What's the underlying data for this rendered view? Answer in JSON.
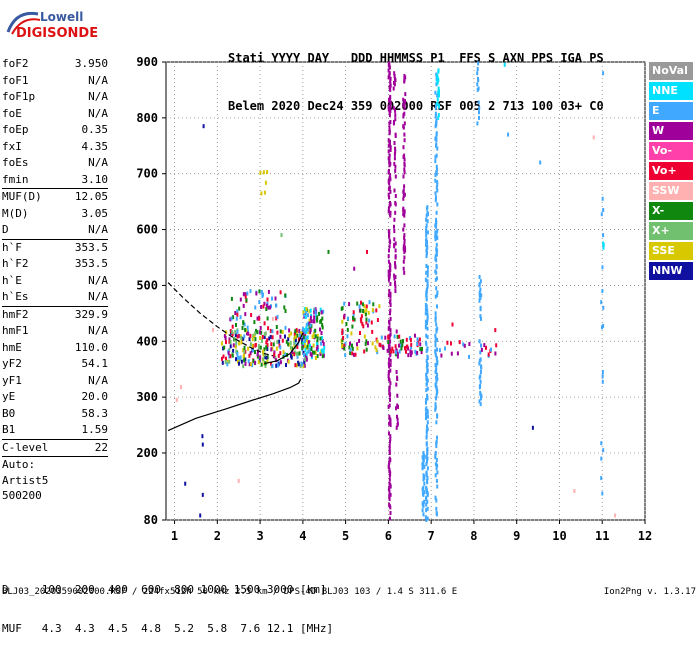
{
  "logo": {
    "top": "Lowell",
    "bottom": "DIGISONDE"
  },
  "header": {
    "line1": "Stati YYYY DAY   DDD HHMMSS P1  FFS S AXN PPS IGA PS",
    "line2": "Belem 2020 Dec24 359 002000 RSF 005 2 713 100 03+ C0"
  },
  "parameters": {
    "group1": [
      {
        "name": "foF2",
        "value": "3.950"
      },
      {
        "name": "foF1",
        "value": "N/A"
      },
      {
        "name": "foF1p",
        "value": "N/A"
      },
      {
        "name": "foE",
        "value": "N/A"
      },
      {
        "name": "foEp",
        "value": "0.35"
      },
      {
        "name": "fxI",
        "value": "4.35"
      },
      {
        "name": "foEs",
        "value": "N/A"
      },
      {
        "name": "fmin",
        "value": "3.10"
      }
    ],
    "group2": [
      {
        "name": "MUF(D)",
        "value": "12.05"
      },
      {
        "name": "M(D)",
        "value": "3.05"
      },
      {
        "name": "D",
        "value": "N/A"
      }
    ],
    "group3": [
      {
        "name": "h`F",
        "value": "353.5"
      },
      {
        "name": "h`F2",
        "value": "353.5"
      },
      {
        "name": "h`E",
        "value": "N/A"
      },
      {
        "name": "h`Es",
        "value": "N/A"
      }
    ],
    "group4": [
      {
        "name": "hmF2",
        "value": "329.9"
      },
      {
        "name": "hmF1",
        "value": "N/A"
      },
      {
        "name": "hmE",
        "value": "110.0"
      },
      {
        "name": "yF2",
        "value": "54.1"
      },
      {
        "name": "yF1",
        "value": "N/A"
      },
      {
        "name": "yE",
        "value": "20.0"
      },
      {
        "name": "B0",
        "value": "58.3"
      },
      {
        "name": "B1",
        "value": "1.59"
      }
    ],
    "clevel": {
      "name": "C-level",
      "value": "22"
    },
    "auto": [
      "Auto:",
      "Artist5",
      "500200"
    ]
  },
  "legend": [
    {
      "label": "NoVal",
      "color": "#999999"
    },
    {
      "label": "NNE",
      "color": "#00e0ff"
    },
    {
      "label": "E",
      "color": "#40a8ff"
    },
    {
      "label": "W",
      "color": "#a0009a"
    },
    {
      "label": "Vo-",
      "color": "#ff3faa"
    },
    {
      "label": "Vo+",
      "color": "#ee0033"
    },
    {
      "label": "SSW",
      "color": "#ffb0b0"
    },
    {
      "label": "X-",
      "color": "#108810"
    },
    {
      "label": "X+",
      "color": "#70c070"
    },
    {
      "label": "SSE",
      "color": "#d8c800"
    },
    {
      "label": "NNW",
      "color": "#1010a0"
    }
  ],
  "muf_table": {
    "line1": "D     100  200  400  600  800 1000 1500 3000 [km]",
    "line2": "MUF   4.3  4.3  4.5  4.8  5.2  5.8  7.6 12.1 [MHz]"
  },
  "footer": {
    "left": "BLJ03_2020359002000.RSF / 224fx512h 50 kHz 2.5 km / DPS-4D BLJ03 103 / 1.4 S 311.6 E",
    "right": "Ion2Png v. 1.3.17"
  },
  "chart_data": {
    "type": "scatter",
    "x_ticks": [
      "1",
      "2",
      "3",
      "4",
      "5",
      "6",
      "7",
      "8",
      "9",
      "10",
      "11",
      "12"
    ],
    "y_ticks": [
      "80",
      "200",
      "300",
      "400",
      "500",
      "600",
      "700",
      "800",
      "900"
    ],
    "xlim": [
      0.8,
      12.0
    ],
    "ylim": [
      80,
      900
    ],
    "grid": true,
    "legend_position": "right",
    "trace_profile": [
      [
        0.85,
        240
      ],
      [
        1.5,
        262
      ],
      [
        2.2,
        279
      ],
      [
        2.8,
        294
      ],
      [
        3.3,
        306
      ],
      [
        3.7,
        317
      ],
      [
        3.9,
        325
      ],
      [
        3.95,
        332
      ]
    ],
    "trace_dashed": [
      [
        0.85,
        505
      ],
      [
        1.2,
        478
      ],
      [
        1.6,
        450
      ],
      [
        2.0,
        426
      ],
      [
        2.4,
        405
      ],
      [
        2.8,
        388
      ],
      [
        3.1,
        378
      ],
      [
        3.3,
        374
      ]
    ],
    "trace_solid_upper": [
      [
        3.1,
        360
      ],
      [
        3.4,
        365
      ],
      [
        3.7,
        378
      ],
      [
        3.9,
        398
      ],
      [
        4.0,
        415
      ]
    ],
    "vertical_streaks": [
      {
        "x": 6.03,
        "y1": 80,
        "y2": 900,
        "mode": "W",
        "density": 0.55
      },
      {
        "x": 6.15,
        "y1": 480,
        "y2": 880,
        "mode": "W",
        "density": 0.35
      },
      {
        "x": 6.37,
        "y1": 520,
        "y2": 890,
        "mode": "W",
        "density": 0.3
      },
      {
        "x": 6.2,
        "y1": 230,
        "y2": 420,
        "mode": "W",
        "density": 0.25
      },
      {
        "x": 6.9,
        "y1": 80,
        "y2": 640,
        "mode": "E",
        "density": 0.55
      },
      {
        "x": 7.12,
        "y1": 90,
        "y2": 880,
        "mode": "E",
        "density": 0.4
      },
      {
        "x": 6.82,
        "y1": 90,
        "y2": 200,
        "mode": "E",
        "density": 0.6
      },
      {
        "x": 8.15,
        "y1": 280,
        "y2": 520,
        "mode": "E",
        "density": 0.3
      },
      {
        "x": 8.1,
        "y1": 770,
        "y2": 900,
        "mode": "E",
        "density": 0.3
      },
      {
        "x": 11.0,
        "y1": 80,
        "y2": 900,
        "mode": "E",
        "density": 0.07
      },
      {
        "x": 11.02,
        "y1": 560,
        "y2": 580,
        "mode": "NNE",
        "density": 0.8
      },
      {
        "x": 7.16,
        "y1": 800,
        "y2": 890,
        "mode": "NNE",
        "density": 0.4
      }
    ],
    "clusters": [
      {
        "x1": 2.1,
        "x2": 4.1,
        "y1": 355,
        "y2": 420,
        "count": 260,
        "modes": [
          "W",
          "Vo+",
          "X-",
          "X+",
          "SSE",
          "E",
          "NNW"
        ]
      },
      {
        "x1": 2.3,
        "x2": 3.6,
        "y1": 420,
        "y2": 490,
        "count": 70,
        "modes": [
          "W",
          "Vo+",
          "X-",
          "E"
        ]
      },
      {
        "x1": 4.0,
        "x2": 4.5,
        "y1": 370,
        "y2": 460,
        "count": 120,
        "modes": [
          "E",
          "NNE",
          "X-",
          "W",
          "SSE"
        ]
      },
      {
        "x1": 4.9,
        "x2": 5.8,
        "y1": 375,
        "y2": 470,
        "count": 90,
        "modes": [
          "E",
          "X-",
          "W",
          "Vo+",
          "SSE"
        ]
      },
      {
        "x1": 5.8,
        "x2": 6.8,
        "y1": 375,
        "y2": 410,
        "count": 60,
        "modes": [
          "Vo+",
          "X-",
          "W",
          "E"
        ]
      },
      {
        "x1": 7.2,
        "x2": 8.6,
        "y1": 370,
        "y2": 400,
        "count": 20,
        "modes": [
          "Vo+",
          "E",
          "W"
        ]
      },
      {
        "x1": 3.0,
        "x2": 3.2,
        "y1": 660,
        "y2": 730,
        "count": 6,
        "modes": [
          "SSE"
        ]
      }
    ],
    "scattered_points": [
      {
        "x": 1.68,
        "y": 785,
        "mode": "NNW"
      },
      {
        "x": 1.65,
        "y": 230,
        "mode": "NNW"
      },
      {
        "x": 1.66,
        "y": 215,
        "mode": "NNW"
      },
      {
        "x": 1.66,
        "y": 125,
        "mode": "NNW"
      },
      {
        "x": 1.6,
        "y": 88,
        "mode": "NNW"
      },
      {
        "x": 1.25,
        "y": 145,
        "mode": "NNW"
      },
      {
        "x": 9.38,
        "y": 245,
        "mode": "NNW"
      },
      {
        "x": 8.8,
        "y": 770,
        "mode": "E"
      },
      {
        "x": 9.55,
        "y": 720,
        "mode": "E"
      },
      {
        "x": 10.8,
        "y": 765,
        "mode": "SSW"
      },
      {
        "x": 8.72,
        "y": 895,
        "mode": "NNE"
      },
      {
        "x": 10.35,
        "y": 132,
        "mode": "SSW"
      },
      {
        "x": 11.3,
        "y": 88,
        "mode": "SSW"
      },
      {
        "x": 1.15,
        "y": 318,
        "mode": "SSW"
      },
      {
        "x": 1.05,
        "y": 295,
        "mode": "SSW"
      },
      {
        "x": 2.5,
        "y": 150,
        "mode": "SSW"
      },
      {
        "x": 3.3,
        "y": 440,
        "mode": "SSW"
      },
      {
        "x": 4.6,
        "y": 560,
        "mode": "X-"
      },
      {
        "x": 5.2,
        "y": 530,
        "mode": "W"
      },
      {
        "x": 5.5,
        "y": 560,
        "mode": "Vo+"
      },
      {
        "x": 3.5,
        "y": 590,
        "mode": "X+"
      },
      {
        "x": 7.5,
        "y": 430,
        "mode": "Vo+"
      },
      {
        "x": 8.5,
        "y": 420,
        "mode": "Vo+"
      },
      {
        "x": 8.4,
        "y": 385,
        "mode": "E"
      },
      {
        "x": 1.9,
        "y": 420,
        "mode": "SSW"
      }
    ]
  }
}
